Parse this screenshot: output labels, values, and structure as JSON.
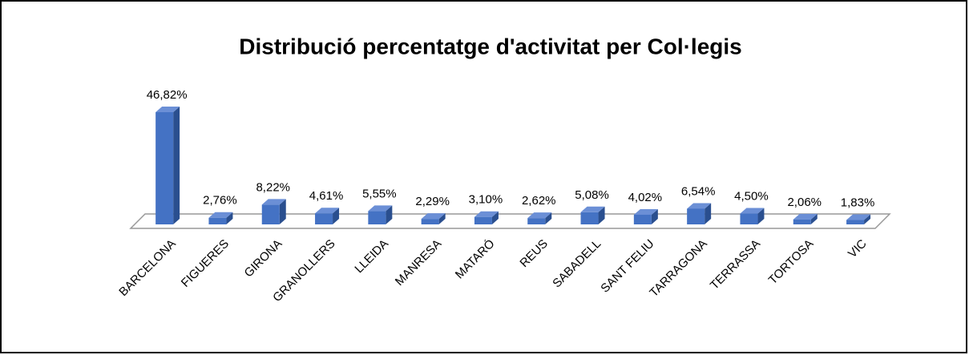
{
  "chart_data": {
    "type": "bar3d",
    "title": "Distribució percentatge d'activitat per Col·legis",
    "categories": [
      "BARCELONA",
      "FIGUERES",
      "GIRONA",
      "GRANOLLERS",
      "LLEIDA",
      "MANRESA",
      "MATARÓ",
      "REUS",
      "SABADELL",
      "SANT FELIU",
      "TARRAGONA",
      "TERRASSA",
      "TORTOSA",
      "VIC"
    ],
    "values": [
      46.82,
      2.76,
      8.22,
      4.61,
      5.55,
      2.29,
      3.1,
      2.62,
      5.08,
      4.02,
      6.54,
      4.5,
      2.06,
      1.83
    ],
    "value_labels": [
      "46,82%",
      "2,76%",
      "8,22%",
      "4,61%",
      "5,55%",
      "2,29%",
      "3,10%",
      "2,62%",
      "5,08%",
      "4,02%",
      "6,54%",
      "4,50%",
      "2,06%",
      "1,83%"
    ],
    "color": "#4472c4"
  }
}
